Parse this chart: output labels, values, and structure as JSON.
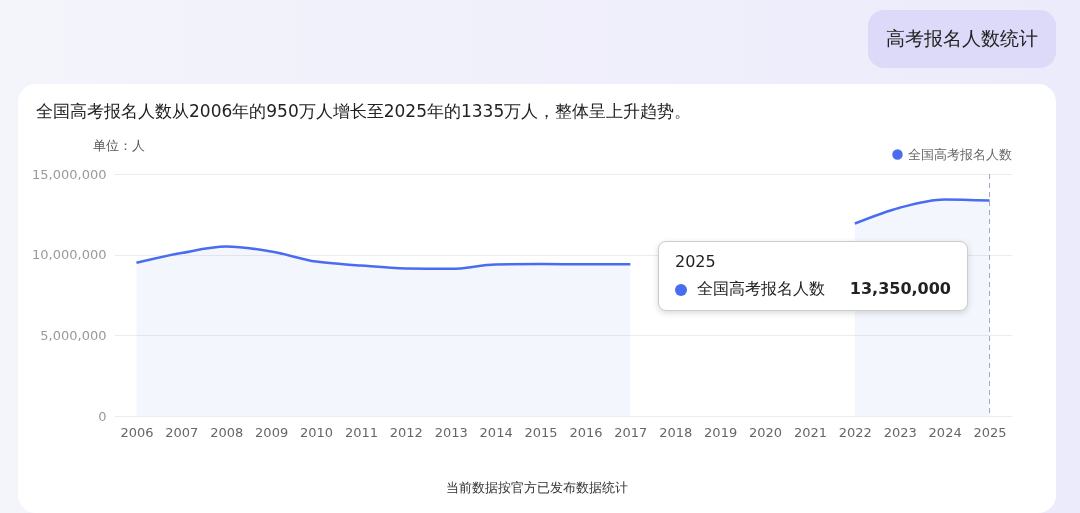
{
  "chart_data": {
    "type": "area",
    "title": "高考报名人数统计",
    "subtitle": "全国高考报名人数从2006年的950万人增长至2025年的1335万人，整体呈上升趋势。",
    "ylabel": "单位：人",
    "categories": [
      "2006",
      "2007",
      "2008",
      "2009",
      "2010",
      "2011",
      "2012",
      "2013",
      "2014",
      "2015",
      "2016",
      "2017",
      "2018",
      "2019",
      "2020",
      "2021",
      "2022",
      "2023",
      "2024",
      "2025"
    ],
    "series": [
      {
        "name": "全国高考报名人数",
        "color": "#4a6cf0",
        "values": [
          9500000,
          10100000,
          10500000,
          10200000,
          9570000,
          9330000,
          9150000,
          9120000,
          9390000,
          9420000,
          9400000,
          9400000,
          null,
          null,
          null,
          null,
          11930000,
          12910000,
          13420000,
          13350000
        ]
      }
    ],
    "ylim": [
      0,
      15000000
    ],
    "yticks": [
      {
        "value": 0,
        "label": "0"
      },
      {
        "value": 5000000,
        "label": "5,000,000"
      },
      {
        "value": 10000000,
        "label": "10,000,000"
      },
      {
        "value": 15000000,
        "label": "15,000,000"
      }
    ],
    "grid": "y",
    "legend": "top right",
    "ref_lines": [
      {
        "axis": "x",
        "value": "2025",
        "line_style": "dashed",
        "color": "#9aa7c7"
      }
    ],
    "annotations": [
      "2025",
      "全国高考报名人数",
      "13,350,000",
      "当前数据按官方已发布数据统计"
    ]
  }
}
